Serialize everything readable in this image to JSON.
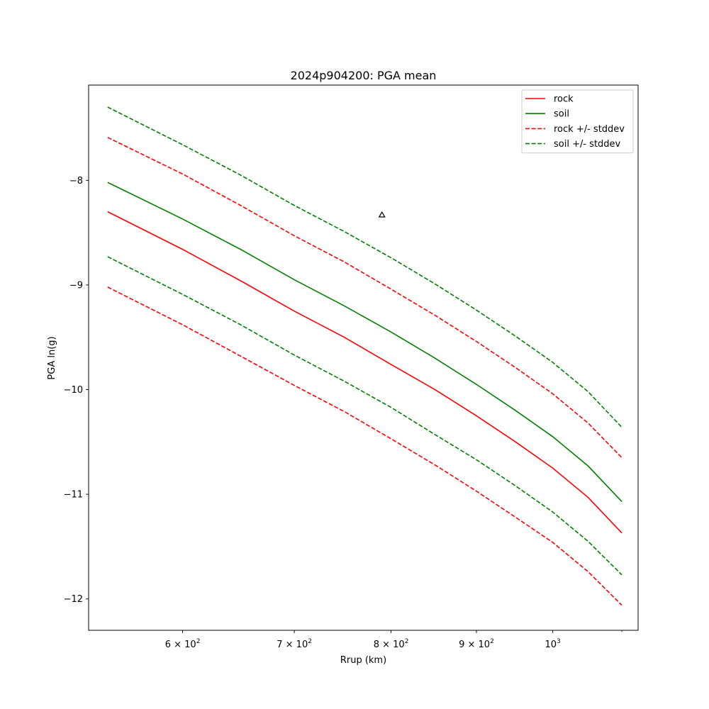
{
  "chart_data": {
    "type": "line",
    "title": "2024p904200: PGA mean",
    "xlabel": "Rrup (km)",
    "ylabel": "PGA ln(g)",
    "xscale": "log",
    "xlim": [
      527,
      1125
    ],
    "ylim": [
      -12.3,
      -7.09
    ],
    "grid": false,
    "legend_position": "top-right",
    "x_ticks": [
      {
        "value": 600,
        "mantissa": "6",
        "base": "10",
        "exp": "2"
      },
      {
        "value": 700,
        "mantissa": "7",
        "base": "10",
        "exp": "2"
      },
      {
        "value": 800,
        "mantissa": "8",
        "base": "10",
        "exp": "2"
      },
      {
        "value": 900,
        "mantissa": "9",
        "base": "10",
        "exp": "2"
      },
      {
        "value": 1000,
        "mantissa": "",
        "base": "10",
        "exp": "3"
      }
    ],
    "y_ticks": [
      {
        "value": -8,
        "label": "−8"
      },
      {
        "value": -9,
        "label": "−9"
      },
      {
        "value": -10,
        "label": "−10"
      },
      {
        "value": -11,
        "label": "−11"
      },
      {
        "value": -12,
        "label": "−12"
      }
    ],
    "x": [
      541,
      600,
      650,
      700,
      750,
      800,
      850,
      900,
      950,
      1000,
      1050,
      1100
    ],
    "series": [
      {
        "name": "rock",
        "color": "#ff0000",
        "style": "solid",
        "legend": true,
        "values": [
          -8.3,
          -8.66,
          -8.96,
          -9.25,
          -9.5,
          -9.76,
          -10.0,
          -10.25,
          -10.5,
          -10.75,
          -11.03,
          -11.37
        ]
      },
      {
        "name": "soil",
        "color": "#008000",
        "style": "solid",
        "legend": true,
        "values": [
          -8.02,
          -8.37,
          -8.66,
          -8.95,
          -9.2,
          -9.45,
          -9.7,
          -9.95,
          -10.2,
          -10.45,
          -10.73,
          -11.07
        ]
      },
      {
        "name": "rock +/- stddev",
        "color": "#ff0000",
        "style": "dashed",
        "legend": true,
        "values": [
          -7.59,
          -7.94,
          -8.24,
          -8.53,
          -8.78,
          -9.04,
          -9.29,
          -9.54,
          -9.79,
          -10.04,
          -10.32,
          -10.65
        ]
      },
      {
        "name": "",
        "color": "#ff0000",
        "style": "dashed",
        "legend": false,
        "values": [
          -9.02,
          -9.38,
          -9.68,
          -9.96,
          -10.21,
          -10.47,
          -10.72,
          -10.97,
          -11.22,
          -11.46,
          -11.74,
          -12.06
        ]
      },
      {
        "name": "soil +/- stddev",
        "color": "#008000",
        "style": "dashed",
        "legend": true,
        "values": [
          -7.3,
          -7.66,
          -7.95,
          -8.24,
          -8.49,
          -8.74,
          -8.99,
          -9.24,
          -9.49,
          -9.74,
          -10.02,
          -10.36
        ]
      },
      {
        "name": "",
        "color": "#008000",
        "style": "dashed",
        "legend": false,
        "values": [
          -8.73,
          -9.09,
          -9.38,
          -9.67,
          -9.92,
          -10.17,
          -10.43,
          -10.67,
          -10.92,
          -11.17,
          -11.45,
          -11.77
        ]
      }
    ],
    "observations": [
      {
        "x": 790,
        "y": -8.33,
        "marker": "triangle-up",
        "color": "#000000"
      }
    ]
  }
}
